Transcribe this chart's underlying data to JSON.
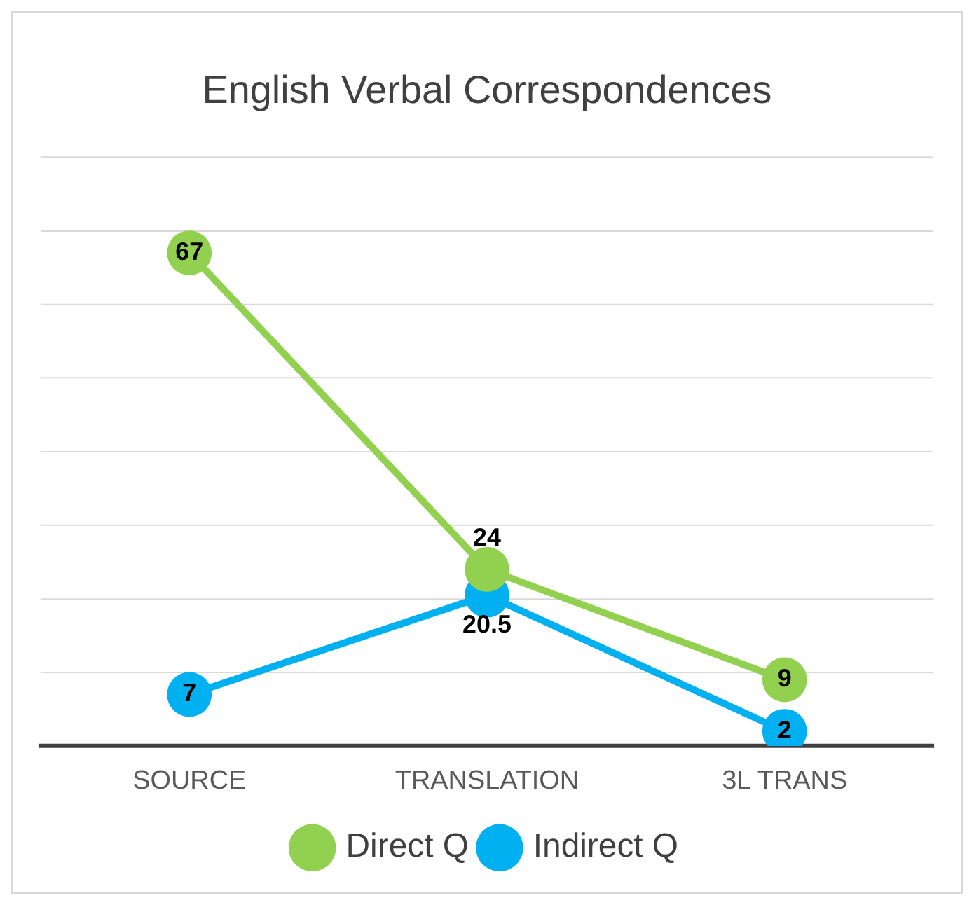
{
  "chart_data": {
    "type": "line",
    "title": "English Verbal Correspondences",
    "categories": [
      "SOURCE",
      "TRANSLATION",
      "3L TRANS"
    ],
    "series": [
      {
        "name": "Direct Q",
        "color": "#92d050",
        "values": [
          67,
          24,
          9
        ]
      },
      {
        "name": "Indirect Q",
        "color": "#00b0f0",
        "values": [
          7,
          20.5,
          2
        ]
      }
    ],
    "ylim": [
      0,
      80
    ],
    "yticks": [
      {
        "value": 0,
        "label": null
      },
      {
        "value": 10,
        "label": null
      },
      {
        "value": 20,
        "label": null
      },
      {
        "value": 30,
        "label": null
      },
      {
        "value": 40,
        "label": null
      },
      {
        "value": 50,
        "label": null
      },
      {
        "value": 60,
        "label": null
      },
      {
        "value": 70,
        "label": null
      },
      {
        "value": 80,
        "label": null
      }
    ],
    "tick_labels": "x",
    "grid": "y",
    "legend": "bottom",
    "marker": "circle",
    "line_style": "solid",
    "data_labels": true
  }
}
